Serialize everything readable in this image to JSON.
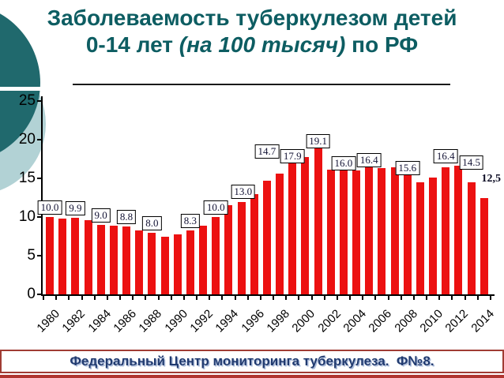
{
  "title": {
    "line1": "Заболеваемость туберкулезом детей",
    "line2_prefix": "0-14 лет ",
    "line2_italic": "(на 100 тысяч)",
    "line2_suffix": " по РФ"
  },
  "footer": {
    "text": "Федеральный Центр мониторинга туберкулеза.  Ф№8."
  },
  "colors": {
    "bar": "#ec1111",
    "title_text": "#0d5d62",
    "dark_circle": "#20696d",
    "light_circle": "#b2d2d5",
    "banner_border": "#a03c34",
    "banner_text": "#203a6f",
    "bottom_strip": "#b03530"
  },
  "chart_data": {
    "type": "bar",
    "title": "Заболеваемость туберкулезом детей 0-14 лет (на 100 тысяч) по РФ",
    "xlabel": "",
    "ylabel": "",
    "ylim": [
      0,
      25
    ],
    "grid": false,
    "legend": "none",
    "bar_color": "#ec1111",
    "x": [
      1980,
      1981,
      1982,
      1983,
      1984,
      1985,
      1986,
      1987,
      1988,
      1989,
      1990,
      1991,
      1992,
      1993,
      1994,
      1995,
      1996,
      1997,
      1998,
      1999,
      2000,
      2001,
      2002,
      2003,
      2004,
      2005,
      2006,
      2007,
      2008,
      2009,
      2010,
      2011,
      2012,
      2013,
      2014
    ],
    "values": [
      10.0,
      9.8,
      9.9,
      9.6,
      9.0,
      8.9,
      8.8,
      8.3,
      8.0,
      7.4,
      7.8,
      8.3,
      8.9,
      10.0,
      11.5,
      11.9,
      13.0,
      14.7,
      15.6,
      17.9,
      17.8,
      19.1,
      16.1,
      16.0,
      16.0,
      16.4,
      16.3,
      16.4,
      15.6,
      14.5,
      15.1,
      16.4,
      16.6,
      14.5,
      12.5
    ],
    "yticks": [
      "0",
      "5",
      "10",
      "15",
      "20",
      "25"
    ],
    "xtick_labels": [
      "1980",
      "1982",
      "1984",
      "1986",
      "1988",
      "1990",
      "1992",
      "1994",
      "1996",
      "1998",
      "2000",
      "2002",
      "2004",
      "2006",
      "2008",
      "2010",
      "2012",
      "2014"
    ],
    "data_labels": [
      {
        "year": 1980,
        "text": "10.0"
      },
      {
        "year": 1982,
        "text": "9.9"
      },
      {
        "year": 1984,
        "text": "9.0"
      },
      {
        "year": 1986,
        "text": "8.8"
      },
      {
        "year": 1988,
        "text": "8.0"
      },
      {
        "year": 1991,
        "text": "8.3"
      },
      {
        "year": 1993,
        "text": "10.0"
      },
      {
        "year": 1996,
        "text": "13.0"
      },
      {
        "year": 1997,
        "text": "14.7"
      },
      {
        "year": 1999,
        "text": "17.9"
      },
      {
        "year": 2001,
        "text": "19.1"
      },
      {
        "year": 2003,
        "text": "16.0"
      },
      {
        "year": 2005,
        "text": "16.4"
      },
      {
        "year": 2008,
        "text": "15.6"
      },
      {
        "year": 2011,
        "text": "16.4"
      },
      {
        "year": 2013,
        "text": "14.5"
      },
      {
        "year": 2014,
        "text": "12,5",
        "bold": true
      }
    ]
  }
}
